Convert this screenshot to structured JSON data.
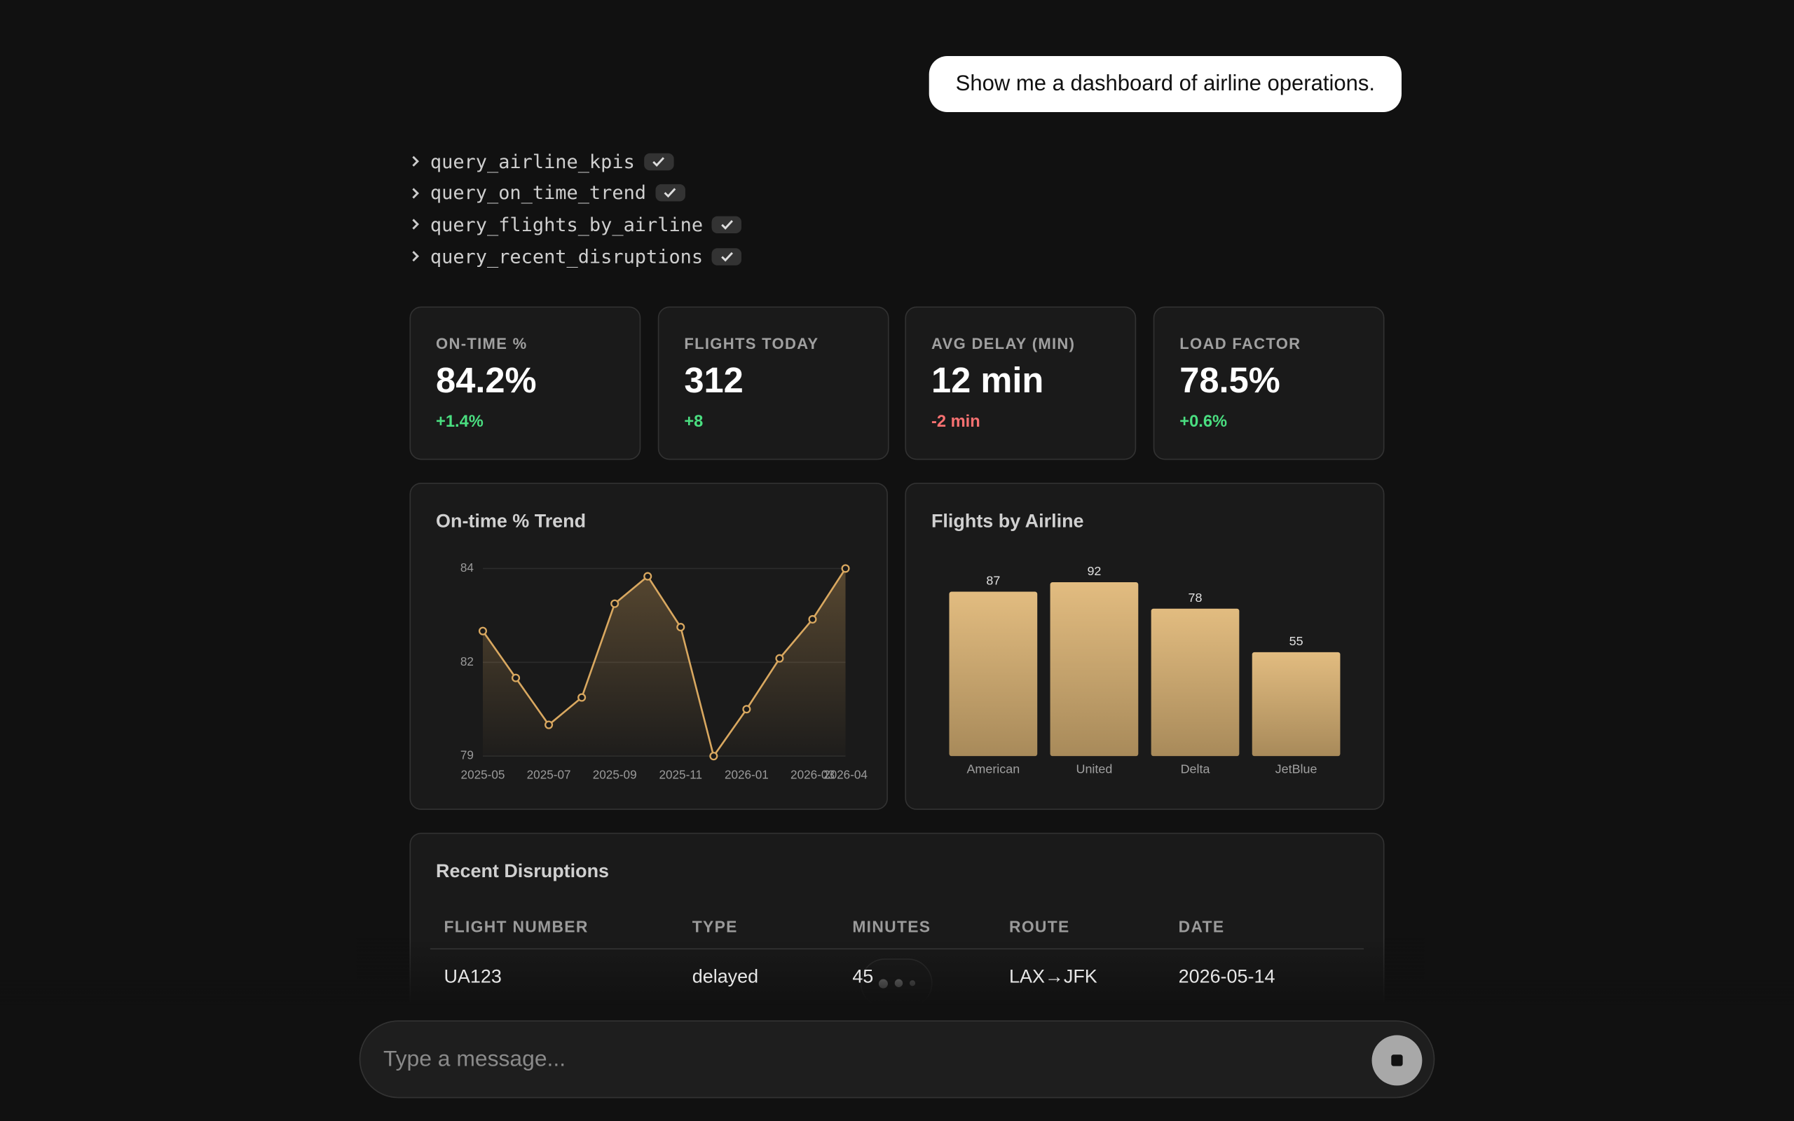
{
  "user_message": "Show me a dashboard of airline operations.",
  "tool_calls": [
    "query_airline_kpis",
    "query_on_time_trend",
    "query_flights_by_airline",
    "query_recent_disruptions"
  ],
  "kpis": [
    {
      "label": "ON-TIME %",
      "value": "84.2%",
      "delta": "+1.4%",
      "color": "#4ade80"
    },
    {
      "label": "FLIGHTS TODAY",
      "value": "312",
      "delta": "+8",
      "color": "#4ade80"
    },
    {
      "label": "AVG DELAY (MIN)",
      "value": "12 min",
      "delta": "-2 min",
      "color": "#f87171"
    },
    {
      "label": "LOAD FACTOR",
      "value": "78.5%",
      "delta": "+0.6%",
      "color": "#4ade80"
    }
  ],
  "chart_data": [
    {
      "type": "line",
      "title": "On-time % Trend",
      "categories": [
        "2025-05",
        null,
        "2025-07",
        null,
        "2025-09",
        null,
        "2025-11",
        null,
        "2026-01",
        null,
        "2026-03",
        "2026-04"
      ],
      "values": [
        82.6,
        81.4,
        80.2,
        80.9,
        83.3,
        84.0,
        82.7,
        79.4,
        80.6,
        81.9,
        82.9,
        84.2
      ],
      "color": "#d9a860",
      "ylim": [
        79.4,
        84.2
      ],
      "yticks": [
        {
          "value": 79.4,
          "label": "79"
        },
        {
          "value": 81.8,
          "label": "82"
        },
        {
          "value": 84.2,
          "label": "84"
        }
      ],
      "grid": true
    },
    {
      "type": "bar",
      "title": "Flights by Airline",
      "categories": [
        "American",
        "United",
        "Delta",
        "JetBlue"
      ],
      "values": [
        87,
        92,
        78,
        55
      ],
      "color": "#d9b478",
      "ylim": [
        0,
        92
      ]
    }
  ],
  "table": {
    "title": "Recent Disruptions",
    "columns": [
      "FLIGHT NUMBER",
      "TYPE",
      "MINUTES",
      "ROUTE",
      "DATE"
    ],
    "rows": [
      [
        "UA123",
        "delayed",
        "45",
        "LAX→JFK",
        "2026-05-14"
      ]
    ]
  },
  "input": {
    "placeholder": "Type a message..."
  }
}
